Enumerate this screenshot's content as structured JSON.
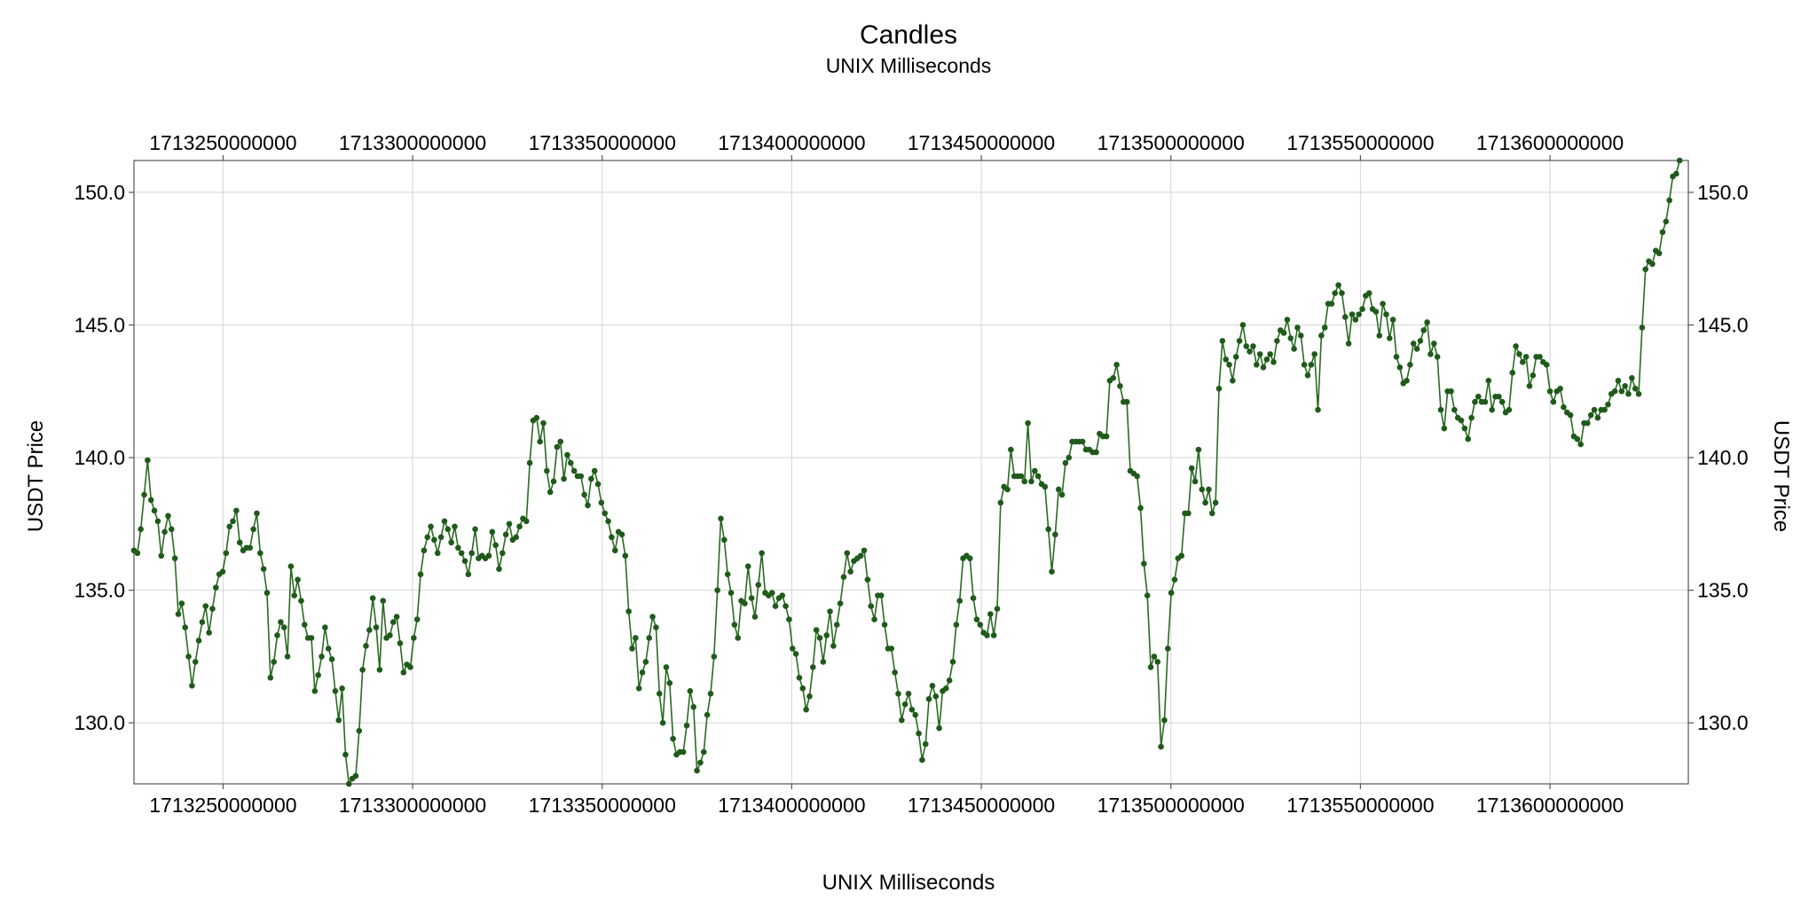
{
  "chart_data": {
    "type": "line",
    "title": "Candles",
    "subtitle": "UNIX Milliseconds",
    "xlabel": "UNIX Milliseconds",
    "ylabel": "USDT Price",
    "x_ticks": [
      "1713250000000",
      "1713300000000",
      "1713350000000",
      "1713400000000",
      "1713450000000",
      "1713500000000",
      "1713550000000",
      "1713600000000"
    ],
    "x_tick_values": [
      1713250000000,
      1713300000000,
      1713350000000,
      1713400000000,
      1713450000000,
      1713500000000,
      1713550000000,
      1713600000000
    ],
    "y_ticks": [
      "130.0",
      "135.0",
      "140.0",
      "145.0",
      "150.0"
    ],
    "y_tick_values": [
      130,
      135,
      140,
      145,
      150
    ],
    "xlim": [
      1713226500000,
      1713636500000
    ],
    "ylim": [
      127.7,
      151.2
    ],
    "grid": true,
    "line_color": "#2a6a22",
    "marker_color": "#1f5a1a",
    "series": [
      {
        "x_start": 1713226500000,
        "x_step": 900000,
        "values": [
          136.5,
          136.4,
          137.3,
          138.6,
          139.9,
          138.4,
          138.0,
          137.6,
          136.3,
          137.2,
          137.8,
          137.3,
          136.2,
          134.1,
          134.5,
          133.6,
          132.5,
          131.4,
          132.3,
          133.1,
          133.8,
          134.4,
          133.4,
          134.3,
          135.1,
          135.6,
          135.7,
          136.4,
          137.4,
          137.6,
          138.0,
          136.8,
          136.5,
          136.6,
          136.6,
          137.3,
          137.9,
          136.4,
          135.8,
          134.9,
          131.7,
          132.3,
          133.3,
          133.8,
          133.6,
          132.5,
          135.9,
          134.8,
          135.4,
          134.6,
          133.7,
          133.2,
          133.2,
          131.2,
          131.8,
          132.5,
          133.6,
          132.8,
          132.4,
          131.2,
          130.1,
          131.3,
          128.8,
          127.7,
          127.9,
          128.0,
          129.7,
          132.0,
          132.9,
          133.5,
          134.7,
          133.6,
          132.0,
          134.6,
          133.2,
          133.3,
          133.8,
          134.0,
          133.0,
          131.9,
          132.2,
          132.1,
          133.2,
          133.9,
          135.6,
          136.5,
          137.0,
          137.4,
          136.9,
          136.4,
          137.0,
          137.6,
          137.3,
          136.8,
          137.4,
          136.6,
          136.4,
          136.1,
          135.6,
          136.4,
          137.3,
          136.2,
          136.3,
          136.2,
          136.3,
          137.2,
          136.7,
          135.8,
          136.4,
          137.1,
          137.5,
          136.9,
          137.0,
          137.4,
          137.7,
          137.6,
          139.8,
          141.4,
          141.5,
          140.6,
          141.3,
          139.5,
          138.7,
          139.1,
          140.4,
          140.6,
          139.2,
          140.1,
          139.8,
          139.5,
          139.3,
          139.3,
          138.6,
          138.2,
          139.2,
          139.5,
          139.0,
          138.3,
          137.9,
          137.6,
          137.0,
          136.5,
          137.2,
          137.1,
          136.3,
          134.2,
          132.8,
          133.2,
          131.3,
          131.9,
          132.3,
          133.2,
          134.0,
          133.6,
          131.1,
          130.0,
          132.1,
          131.5,
          129.4,
          128.8,
          128.9,
          128.9,
          129.9,
          131.2,
          130.6,
          128.2,
          128.5,
          128.9,
          130.3,
          131.1,
          132.5,
          135.0,
          137.7,
          136.9,
          135.6,
          134.9,
          133.7,
          133.2,
          134.6,
          134.5,
          135.9,
          134.7,
          134.0,
          135.2,
          136.4,
          134.9,
          134.8,
          134.9,
          134.4,
          134.7,
          134.8,
          134.4,
          133.9,
          132.8,
          132.6,
          131.7,
          131.3,
          130.5,
          131.0,
          132.1,
          133.5,
          133.2,
          132.3,
          133.3,
          134.2,
          132.9,
          133.7,
          134.5,
          135.5,
          136.4,
          135.7,
          136.1,
          136.2,
          136.3,
          136.5,
          135.4,
          134.4,
          133.9,
          134.8,
          134.8,
          133.7,
          132.8,
          132.8,
          131.9,
          131.1,
          130.1,
          130.7,
          131.1,
          130.5,
          130.3,
          129.6,
          128.6,
          129.2,
          130.9,
          131.4,
          131.0,
          129.8,
          131.2,
          131.3,
          131.6,
          132.3,
          133.7,
          134.6,
          136.2,
          136.3,
          136.2,
          134.7,
          133.9,
          133.7,
          133.4,
          133.3,
          134.1,
          133.3,
          134.3,
          138.3,
          138.9,
          138.8,
          140.3,
          139.3,
          139.3,
          139.3,
          139.1,
          141.3,
          139.1,
          139.5,
          139.3,
          139.0,
          138.9,
          137.3,
          135.7,
          137.1,
          138.8,
          138.6,
          139.8,
          140.0,
          140.6,
          140.6,
          140.6,
          140.6,
          140.3,
          140.3,
          140.2,
          140.2,
          140.9,
          140.8,
          140.8,
          142.9,
          143.0,
          143.5,
          142.7,
          142.1,
          142.1,
          139.5,
          139.4,
          139.3,
          138.1,
          136.0,
          134.8,
          132.1,
          132.5,
          132.3,
          129.1,
          130.1,
          132.8,
          134.9,
          135.4,
          136.2,
          136.3,
          137.9,
          137.9,
          139.6,
          139.1,
          140.3,
          138.8,
          138.3,
          138.8,
          137.9,
          138.3,
          142.6,
          144.4,
          143.7,
          143.5,
          142.9,
          143.8,
          144.4,
          145.0,
          144.2,
          144.0,
          144.2,
          143.5,
          143.9,
          143.4,
          143.7,
          143.9,
          143.6,
          144.4,
          144.8,
          144.7,
          145.2,
          144.5,
          144.1,
          144.9,
          144.6,
          143.5,
          143.1,
          143.5,
          143.9,
          141.8,
          144.6,
          144.9,
          145.8,
          145.8,
          146.2,
          146.5,
          146.2,
          145.3,
          144.3,
          145.4,
          145.2,
          145.4,
          145.6,
          146.1,
          146.2,
          145.6,
          145.5,
          144.6,
          145.8,
          145.4,
          144.5,
          145.2,
          143.8,
          143.4,
          142.8,
          142.9,
          143.5,
          144.3,
          144.1,
          144.4,
          144.8,
          145.1,
          143.9,
          144.3,
          143.8,
          141.8,
          141.1,
          142.5,
          142.5,
          141.8,
          141.5,
          141.4,
          141.1,
          140.7,
          141.5,
          142.1,
          142.3,
          142.1,
          142.1,
          142.9,
          141.8,
          142.3,
          142.3,
          142.1,
          141.7,
          141.8,
          143.2,
          144.2,
          143.9,
          143.6,
          143.8,
          142.7,
          143.1,
          143.8,
          143.8,
          143.6,
          143.5,
          142.5,
          142.1,
          142.5,
          142.6,
          141.9,
          141.7,
          141.6,
          140.8,
          140.7,
          140.5,
          141.3,
          141.3,
          141.6,
          141.8,
          141.5,
          141.8,
          141.8,
          142.0,
          142.4,
          142.5,
          142.9,
          142.5,
          142.7,
          142.4,
          143.0,
          142.6,
          142.4,
          144.9,
          147.1,
          147.4,
          147.3,
          147.8,
          147.7,
          148.5,
          148.9,
          149.7,
          150.6,
          150.7,
          151.2
        ]
      }
    ]
  }
}
